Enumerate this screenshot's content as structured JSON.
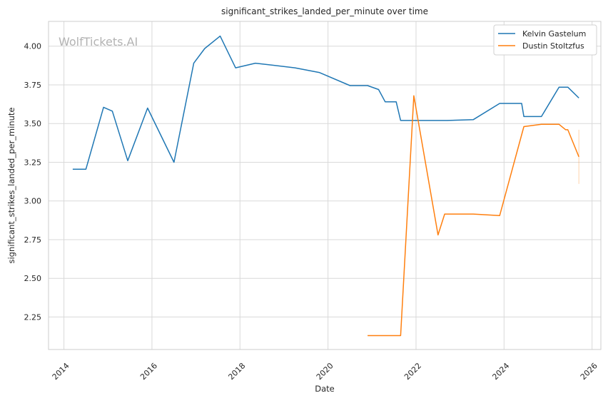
{
  "chart_data": {
    "type": "line",
    "title": "significant_strikes_landed_per_minute over time",
    "xlabel": "Date",
    "ylabel": "significant_strikes_landed_per_minute",
    "watermark": "WolfTickets.AI",
    "x_ticks": [
      "2014",
      "2016",
      "2018",
      "2020",
      "2022",
      "2024",
      "2026"
    ],
    "y_ticks": [
      "2.25",
      "2.50",
      "2.75",
      "3.00",
      "3.25",
      "3.50",
      "3.75",
      "4.00"
    ],
    "xlim": [
      2013.65,
      2026.2
    ],
    "ylim": [
      2.04,
      4.16
    ],
    "grid": true,
    "legend_position": "top-right",
    "series": [
      {
        "name": "Kelvin Gastelum",
        "color": "#1f77b4",
        "points": [
          [
            2014.2,
            3.205
          ],
          [
            2014.5,
            3.205
          ],
          [
            2014.9,
            3.605
          ],
          [
            2015.1,
            3.58
          ],
          [
            2015.45,
            3.26
          ],
          [
            2015.9,
            3.6
          ],
          [
            2016.5,
            3.25
          ],
          [
            2016.95,
            3.89
          ],
          [
            2017.2,
            3.985
          ],
          [
            2017.55,
            4.065
          ],
          [
            2017.9,
            3.86
          ],
          [
            2018.35,
            3.89
          ],
          [
            2019.25,
            3.86
          ],
          [
            2019.8,
            3.83
          ],
          [
            2020.5,
            3.745
          ],
          [
            2020.9,
            3.745
          ],
          [
            2021.15,
            3.72
          ],
          [
            2021.3,
            3.64
          ],
          [
            2021.55,
            3.64
          ],
          [
            2021.65,
            3.52
          ],
          [
            2022.7,
            3.52
          ],
          [
            2023.3,
            3.525
          ],
          [
            2023.9,
            3.63
          ],
          [
            2024.4,
            3.63
          ],
          [
            2024.45,
            3.545
          ],
          [
            2024.85,
            3.545
          ],
          [
            2025.25,
            3.735
          ],
          [
            2025.45,
            3.735
          ],
          [
            2025.7,
            3.665
          ]
        ]
      },
      {
        "name": "Dustin Stoltzfus",
        "color": "#ff7f0e",
        "points": [
          [
            2020.9,
            2.13
          ],
          [
            2021.65,
            2.13
          ],
          [
            2021.95,
            3.68
          ],
          [
            2022.5,
            2.78
          ],
          [
            2022.65,
            2.915
          ],
          [
            2023.3,
            2.915
          ],
          [
            2023.9,
            2.905
          ],
          [
            2024.45,
            3.48
          ],
          [
            2024.85,
            3.495
          ],
          [
            2025.25,
            3.495
          ],
          [
            2025.4,
            3.46
          ],
          [
            2025.45,
            3.46
          ],
          [
            2025.7,
            3.285
          ]
        ],
        "band": [
          [
            2025.7,
            3.11
          ],
          [
            2025.7,
            3.46
          ]
        ]
      }
    ]
  }
}
